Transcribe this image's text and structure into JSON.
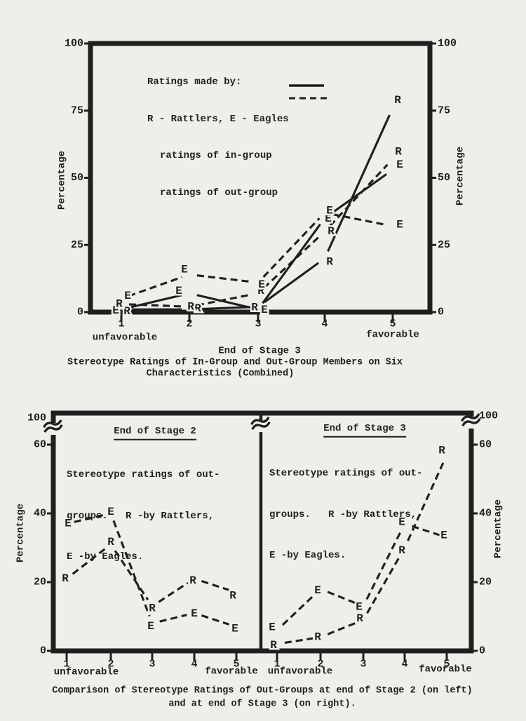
{
  "page": {
    "background": "#f0eee9",
    "ink": "#1f1f1f"
  },
  "chart_data": [
    {
      "type": "line",
      "panel_title": "End of Stage 3",
      "caption_line1": "Stereotype Ratings of In-Group and Out-Group Members on Six",
      "caption_line2": "Characteristics (Combined)",
      "legend": {
        "heading": "Ratings made by:",
        "codes": "R - Rattlers, E - Eagles",
        "solid_label": "ratings of in-group",
        "dashed_label": "ratings of out-group"
      },
      "x_categories": [
        "1",
        "2",
        "3",
        "4",
        "5"
      ],
      "x_left_label": "unfavorable",
      "x_right_label": "favorable",
      "ylabel": "Percentage",
      "ylabel_right": "Percentage",
      "yticks": [
        0,
        25,
        50,
        75,
        100
      ],
      "ylim": [
        0,
        100
      ],
      "legend_position": "top-left-inside",
      "grid": false,
      "series": [
        {
          "name": "ratings of in-group by Rattlers",
          "marker": "R",
          "style": "solid",
          "values": [
            1,
            1,
            2,
            20,
            76
          ],
          "label_dx": [
            8,
            12,
            -5,
            7,
            7
          ],
          "label_dy": [
            3,
            -1,
            1,
            5,
            -11
          ]
        },
        {
          "name": "ratings of in-group by Eagles",
          "marker": "E",
          "style": "solid",
          "values": [
            1,
            7,
            1,
            35,
            53
          ],
          "label_dx": [
            -8,
            -15,
            9,
            5,
            10
          ],
          "label_dy": [
            2,
            -3,
            1,
            1,
            -7
          ]
        },
        {
          "name": "ratings of out-group by Rattlers",
          "marker": "R",
          "style": "dashed",
          "values": [
            3,
            2,
            7,
            30,
            57
          ],
          "label_dx": [
            -3,
            2,
            4,
            9,
            8
          ],
          "label_dy": [
            0,
            0,
            -3,
            0,
            -10
          ]
        },
        {
          "name": "ratings of out-group by Eagles",
          "marker": "E",
          "style": "dashed",
          "values": [
            5,
            14,
            11,
            37,
            32
          ],
          "label_dx": [
            9,
            -7,
            5,
            7,
            10
          ],
          "label_dy": [
            -4,
            -7,
            3,
            -3,
            -2
          ]
        }
      ]
    },
    {
      "type": "line",
      "panel_title": "End of Stage 2",
      "note_lines": [
        "Stereotype ratings of out-",
        "groups.   R -by Rattlers,",
        "E -by Eagles."
      ],
      "x_categories": [
        "1",
        "2",
        "3",
        "4",
        "5"
      ],
      "x_left_label": "unfavorable",
      "x_right_label": "favorable",
      "ylabel": "Percentage",
      "yticks": [
        0,
        20,
        40,
        60
      ],
      "ytick_above_break": 100,
      "y_break_between": [
        60,
        100
      ],
      "ylim": [
        0,
        100
      ],
      "grid": false,
      "series": [
        {
          "name": "out-group rated by Eagles",
          "marker": "E",
          "style": "dashed",
          "values": [
            37,
            40,
            8,
            11,
            7
          ],
          "label_dx": [
            2,
            0,
            -2,
            0,
            -2
          ],
          "label_dy": [
            0,
            -2,
            4,
            1,
            3
          ]
        },
        {
          "name": "out-group rated by Rattlers",
          "marker": "R",
          "style": "dashed",
          "values": [
            21,
            31,
            13,
            21,
            17
          ],
          "label_dx": [
            -2,
            0,
            0,
            -2,
            -5
          ],
          "label_dy": [
            0,
            -3,
            3,
            3,
            5
          ]
        }
      ]
    },
    {
      "type": "line",
      "panel_title": "End of Stage 3",
      "note_lines": [
        "Stereotype ratings of out-",
        "groups.   R -by Rattlers,",
        "E -by Eagles."
      ],
      "x_categories": [
        "1",
        "2",
        "3",
        "4",
        "5"
      ],
      "x_left_label": "unfavorable",
      "x_right_label": "favorable",
      "ylabel_right": "Percentage",
      "yticks": [
        0,
        20,
        40,
        60
      ],
      "ytick_above_break": 100,
      "y_break_between": [
        60,
        100
      ],
      "ylim": [
        0,
        100
      ],
      "grid": false,
      "series": [
        {
          "name": "out-group rated by Eagles",
          "marker": "E",
          "style": "dashed",
          "values": [
            6,
            18,
            13,
            37,
            33
          ],
          "label_dx": [
            -7,
            -4,
            -6,
            -4,
            -4
          ],
          "label_dy": [
            -4,
            2,
            1,
            -2,
            -3
          ]
        },
        {
          "name": "out-group rated by Rattlers",
          "marker": "R",
          "style": "dashed",
          "values": [
            2,
            4,
            9,
            30,
            57
          ],
          "label_dx": [
            -5,
            -4,
            -5,
            -4,
            -7
          ],
          "label_dy": [
            2,
            0,
            -2,
            4,
            -6
          ]
        }
      ]
    }
  ],
  "figure2_caption": {
    "line1": "Comparison of Stereotype Ratings of Out-Groups at end of Stage 2 (on left)",
    "line2": "and at end of Stage 3 (on right)."
  }
}
